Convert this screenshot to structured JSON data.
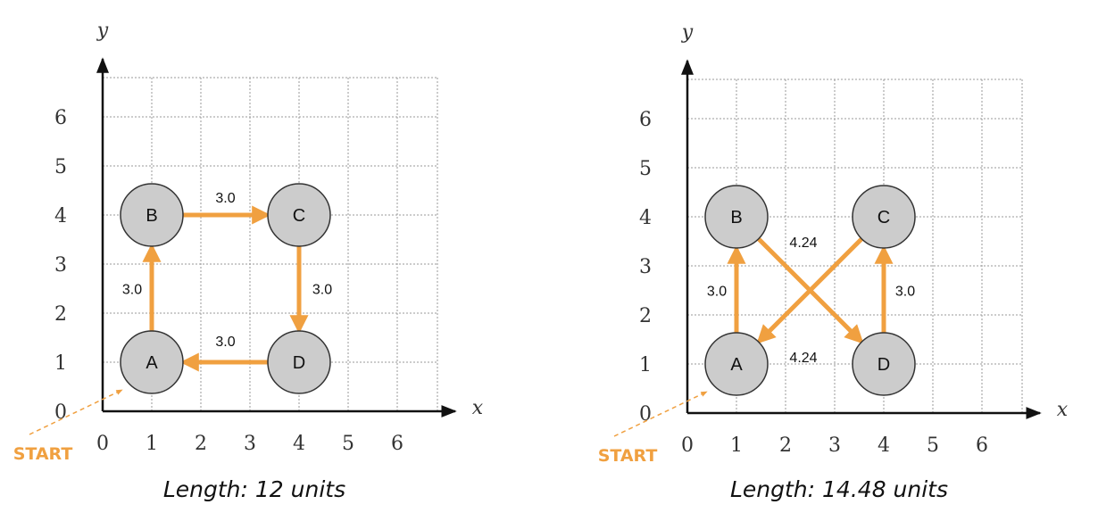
{
  "colors": {
    "arrow": "#f0a040",
    "node_fill": "#cccccc",
    "node_stroke": "#333333",
    "grid": "#9a9a9a",
    "axis": "#111111"
  },
  "diagrams": [
    {
      "id": "left",
      "axis_x_label": "x",
      "axis_y_label": "y",
      "x_ticks": [
        "0",
        "1",
        "2",
        "3",
        "4",
        "5",
        "6"
      ],
      "y_ticks": [
        "0",
        "1",
        "2",
        "3",
        "4",
        "5",
        "6"
      ],
      "start_label": "START",
      "caption": "Length: 12 units",
      "nodes": [
        {
          "label": "A",
          "x": 1,
          "y": 1
        },
        {
          "label": "B",
          "x": 1,
          "y": 4
        },
        {
          "label": "C",
          "x": 4,
          "y": 4
        },
        {
          "label": "D",
          "x": 4,
          "y": 1
        }
      ],
      "edges": [
        {
          "from": "A",
          "to": "B",
          "label": "3.0"
        },
        {
          "from": "B",
          "to": "C",
          "label": "3.0"
        },
        {
          "from": "C",
          "to": "D",
          "label": "3.0"
        },
        {
          "from": "D",
          "to": "A",
          "label": "3.0"
        }
      ]
    },
    {
      "id": "right",
      "axis_x_label": "x",
      "axis_y_label": "y",
      "x_ticks": [
        "0",
        "1",
        "2",
        "3",
        "4",
        "5",
        "6"
      ],
      "y_ticks": [
        "0",
        "1",
        "2",
        "3",
        "4",
        "5",
        "6"
      ],
      "start_label": "START",
      "caption": "Length: 14.48 units",
      "nodes": [
        {
          "label": "A",
          "x": 1,
          "y": 1
        },
        {
          "label": "B",
          "x": 1,
          "y": 4
        },
        {
          "label": "C",
          "x": 4,
          "y": 4
        },
        {
          "label": "D",
          "x": 4,
          "y": 1
        }
      ],
      "edges": [
        {
          "from": "A",
          "to": "B",
          "label": "3.0"
        },
        {
          "from": "B",
          "to": "D",
          "label": "4.24"
        },
        {
          "from": "D",
          "to": "C",
          "label": "3.0"
        },
        {
          "from": "C",
          "to": "A",
          "label": "4.24"
        }
      ]
    }
  ]
}
